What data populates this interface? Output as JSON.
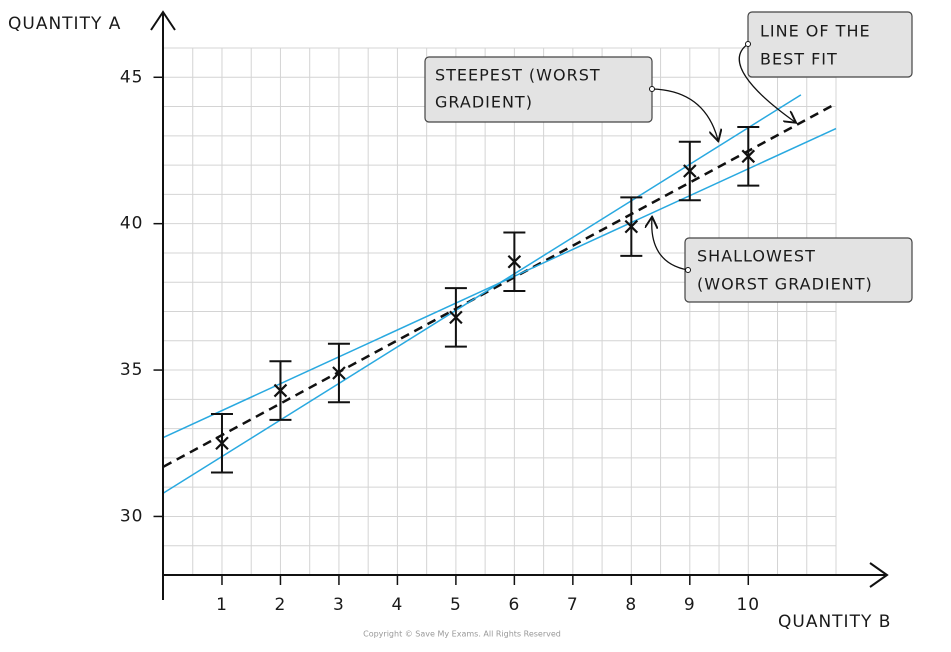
{
  "chart_data": {
    "type": "scatter",
    "x_label": "QUANTITY B",
    "y_label": "QUANTITY A",
    "x": [
      1,
      2,
      3,
      5,
      6,
      8,
      9,
      10
    ],
    "series": [
      {
        "color": "#111111",
        "values": [
          32.5,
          34.3,
          34.9,
          36.8,
          38.7,
          39.9,
          41.8,
          42.3
        ],
        "errors": [
          1,
          1,
          1,
          1,
          1,
          1,
          1,
          1
        ]
      }
    ],
    "lines": [
      {
        "x": [
          0,
          11.5
        ],
        "values": [
          31.7,
          44.1
        ],
        "color": "#111111",
        "style": "dashed"
      },
      {
        "x": [
          0,
          10.9
        ],
        "values": [
          30.8,
          44.4
        ],
        "color": "#29a9e0",
        "style": "solid"
      },
      {
        "x": [
          0,
          11.5
        ],
        "values": [
          32.7,
          43.25
        ],
        "color": "#29a9e0",
        "style": "solid"
      }
    ],
    "annotations": [
      {
        "lines": [
          "STEEPEST (WORST",
          "GRADIENT)"
        ]
      },
      {
        "lines": [
          "LINE OF THE",
          "BEST FIT"
        ]
      },
      {
        "lines": [
          "SHALLOWEST",
          "(WORST GRADIENT)"
        ]
      }
    ],
    "xlim": [
      0,
      11.5
    ],
    "ylim": [
      28,
      46
    ],
    "xticks": [
      1,
      2,
      3,
      4,
      5,
      6,
      7,
      8,
      9,
      10
    ],
    "yticks": [
      30,
      35,
      40,
      45
    ],
    "grid": true,
    "copyright": "Copyright © Save My Exams. All Rights Reserved"
  }
}
